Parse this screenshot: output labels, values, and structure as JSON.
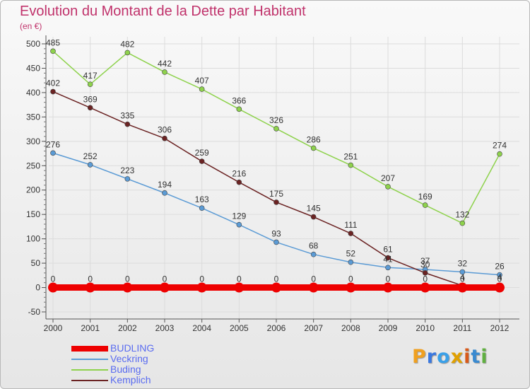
{
  "title": "Evolution du Montant de la Dette par Habitant",
  "subtitle": "(en €)",
  "brand": {
    "letters": [
      "P",
      "r",
      "o",
      "x",
      "i",
      "t",
      "i"
    ],
    "colors": [
      "#f0a020",
      "#3a78e0",
      "#3aa0e8",
      "#e0a000",
      "#d85a1a",
      "#3a8ad0",
      "#60b040"
    ]
  },
  "chart_data": {
    "type": "line",
    "x": [
      2000,
      2001,
      2002,
      2003,
      2004,
      2005,
      2006,
      2007,
      2008,
      2009,
      2010,
      2011,
      2012
    ],
    "ylim": [
      -50,
      500
    ],
    "yticks": [
      -50,
      0,
      50,
      100,
      150,
      200,
      250,
      300,
      350,
      400,
      450,
      500
    ],
    "grid": true,
    "legend_position": "bottom-left",
    "series": [
      {
        "name": "BUDLING",
        "color": "#ee0000",
        "values": [
          0,
          0,
          0,
          0,
          0,
          0,
          0,
          0,
          0,
          0,
          0,
          0,
          0
        ],
        "labels": [
          "0",
          "0",
          "0",
          "0",
          "0",
          "0",
          "0",
          "0",
          "0",
          "0",
          "0",
          "0",
          "0"
        ]
      },
      {
        "name": "Veckring",
        "color": "#5b9bd5",
        "values": [
          276,
          252,
          223,
          194,
          163,
          129,
          93,
          68,
          52,
          41,
          37,
          32,
          26
        ],
        "labels": [
          "276",
          "252",
          "223",
          "194",
          "163",
          "129",
          "93",
          "68",
          "52",
          "41",
          "37",
          "32",
          "26"
        ]
      },
      {
        "name": "Buding",
        "color": "#8ed24c",
        "values": [
          485,
          417,
          482,
          442,
          407,
          366,
          326,
          286,
          251,
          207,
          169,
          132,
          274
        ],
        "labels": [
          "485",
          "417",
          "482",
          "442",
          "407",
          "366",
          "326",
          "286",
          "251",
          "207",
          "169",
          "132",
          "274"
        ]
      },
      {
        "name": "Kemplich",
        "color": "#6b2323",
        "values": [
          402,
          369,
          335,
          306,
          259,
          216,
          175,
          145,
          111,
          61,
          30,
          4,
          4
        ],
        "labels": [
          "402",
          "369",
          "335",
          "306",
          "259",
          "216",
          "175",
          "145",
          "111",
          "61",
          "30",
          "4",
          "4"
        ]
      }
    ]
  }
}
